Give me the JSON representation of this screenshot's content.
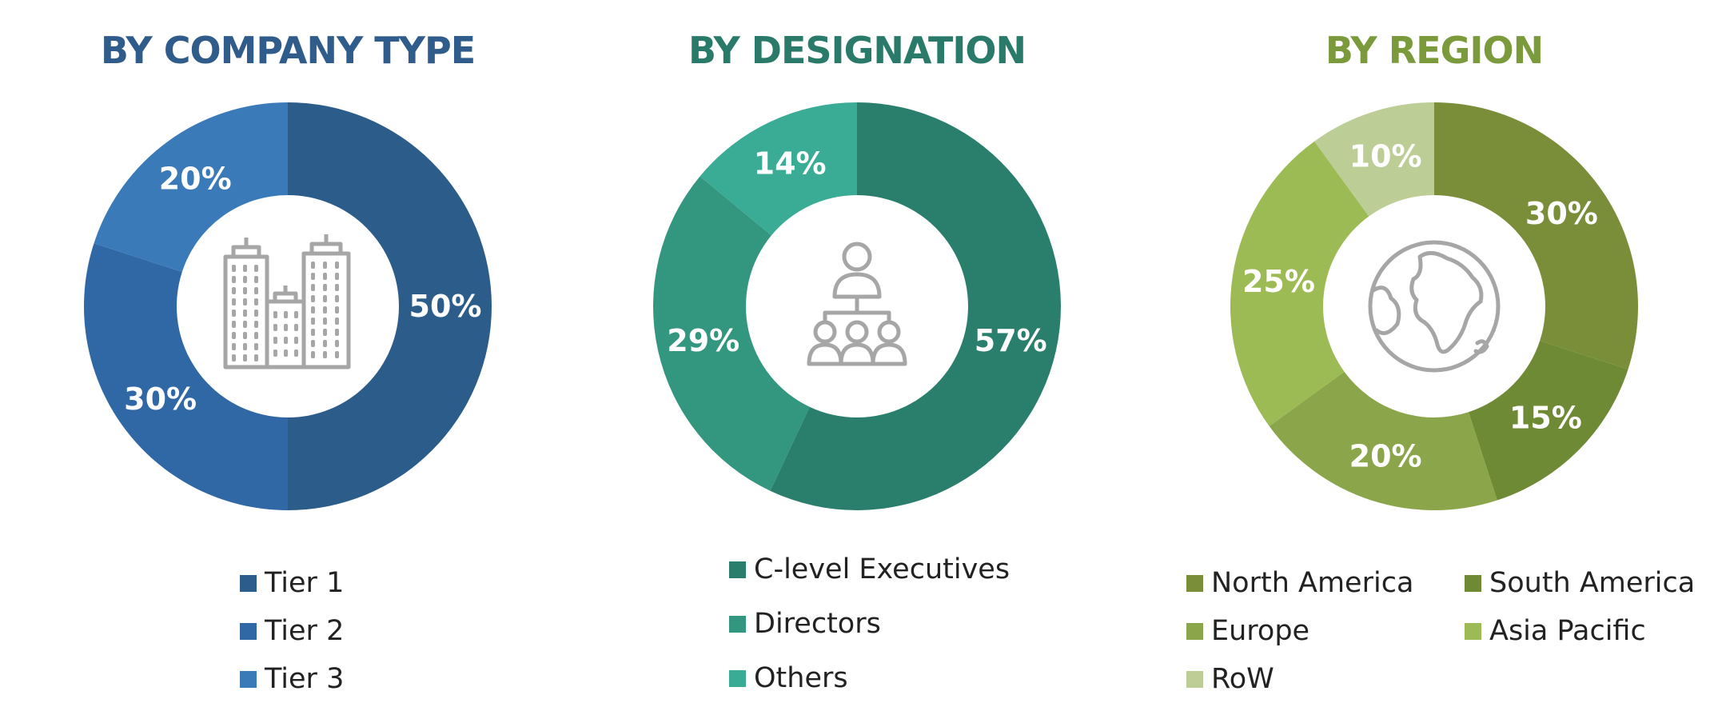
{
  "chart_data": [
    {
      "type": "pie",
      "title": "BY COMPANY TYPE",
      "title_color": "#2F5C8A",
      "categories": [
        "Tier 1",
        "Tier 2",
        "Tier 3"
      ],
      "values": [
        50,
        30,
        20
      ],
      "labels": [
        "50%",
        "30%",
        "20%"
      ],
      "colors": [
        "#2B5C8A",
        "#2F68A5",
        "#3A7AB8"
      ],
      "donut": true,
      "center_icon": "buildings-icon",
      "legend_position": "bottom"
    },
    {
      "type": "pie",
      "title": "BY DESIGNATION",
      "title_color": "#2A7A6A",
      "categories": [
        "C-level Executives",
        "Directors",
        "Others"
      ],
      "values": [
        57,
        29,
        14
      ],
      "labels": [
        "57%",
        "29%",
        "14%"
      ],
      "colors": [
        "#2A7E6C",
        "#33967F",
        "#3AAB94"
      ],
      "donut": true,
      "center_icon": "org-hierarchy-icon",
      "legend_position": "bottom"
    },
    {
      "type": "pie",
      "title": "BY REGION",
      "title_color": "#7A9A3C",
      "categories": [
        "North America",
        "South America",
        "Europe",
        "Asia Pacific",
        "RoW"
      ],
      "values": [
        30,
        15,
        20,
        25,
        10
      ],
      "labels": [
        "30%",
        "15%",
        "20%",
        "25%",
        "10%"
      ],
      "colors": [
        "#7A8E3A",
        "#6F8A35",
        "#8BA64A",
        "#9DBB55",
        "#BCCD96"
      ],
      "donut": true,
      "center_icon": "globe-icon",
      "legend_position": "bottom"
    }
  ]
}
